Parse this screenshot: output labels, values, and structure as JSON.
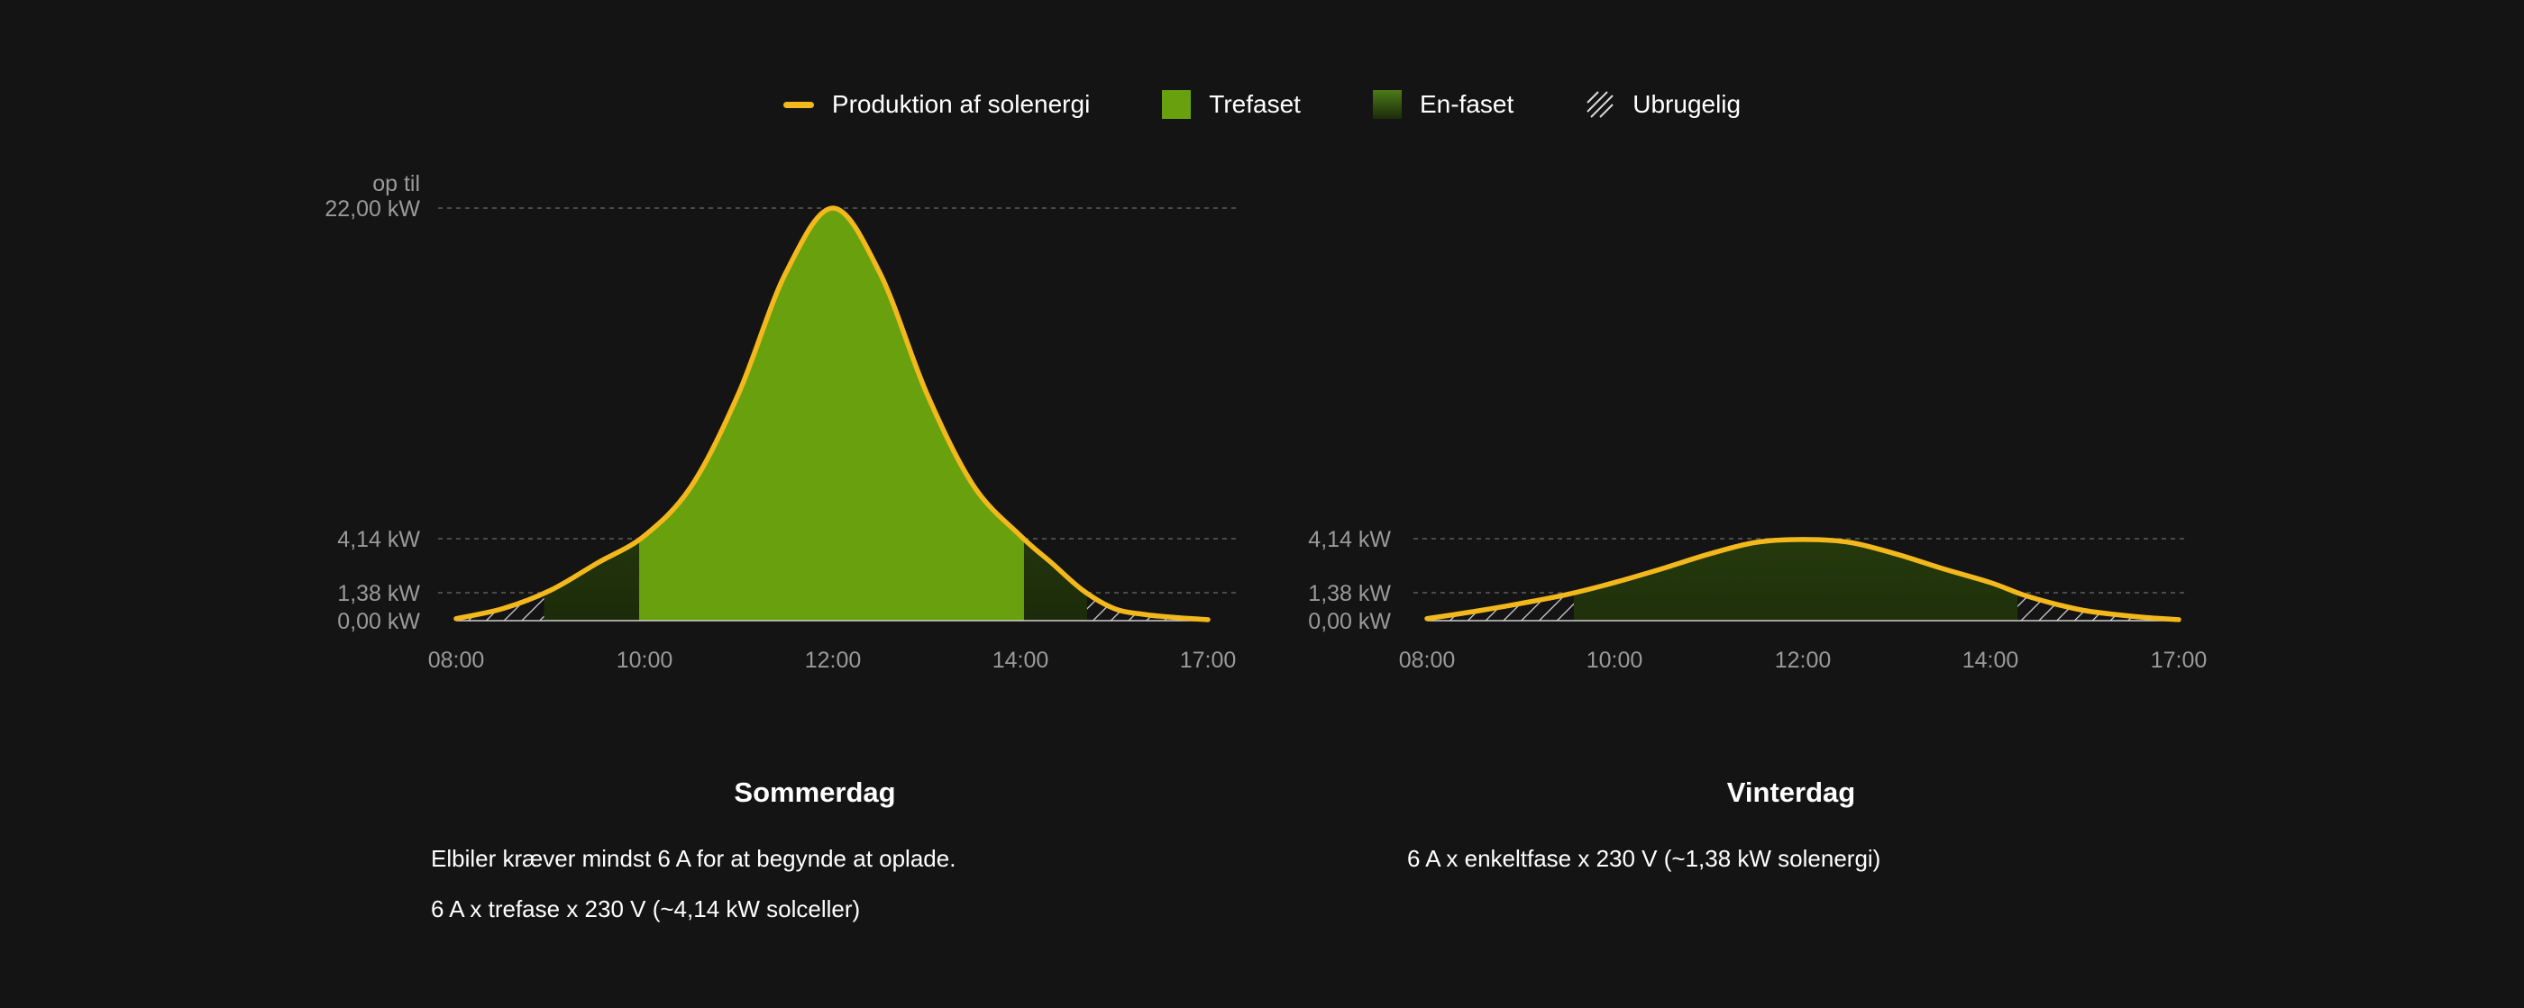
{
  "legend": {
    "production": "Produktion af solenergi",
    "three_phase": "Trefaset",
    "single_phase": "En-faset",
    "unusable": "Ubrugelig"
  },
  "colors": {
    "production_line": "#f2b81c",
    "three_phase": "#68a00e",
    "single_phase_top": "#4c7a18",
    "single_phase_bottom": "#1c2b0a",
    "background": "#141414"
  },
  "chart_data": [
    {
      "type": "area",
      "title": "Sommerdag",
      "x_ticks": [
        "08:00",
        "10:00",
        "12:00",
        "14:00",
        "17:00"
      ],
      "y_ticks": [
        "0,00 kW",
        "1,38 kW",
        "4,14 kW",
        "22,00 kW"
      ],
      "y_top_prefix": "op til",
      "thresholds_kw": {
        "single_phase": 1.38,
        "three_phase": 4.14
      },
      "series": [
        {
          "name": "Produktion af solenergi",
          "x": [
            "08:00",
            "08:30",
            "09:00",
            "09:30",
            "10:00",
            "10:30",
            "11:00",
            "11:30",
            "12:00",
            "12:30",
            "13:00",
            "13:30",
            "14:00",
            "14:30",
            "15:00",
            "15:30",
            "16:00",
            "16:30",
            "17:00"
          ],
          "values": [
            0.1,
            0.6,
            1.5,
            2.9,
            4.3,
            7.0,
            12.0,
            18.5,
            22.0,
            18.5,
            12.0,
            7.0,
            4.3,
            2.9,
            1.5,
            0.6,
            0.3,
            0.15,
            0.05
          ]
        }
      ],
      "descriptions": [
        "Elbiler kræver mindst 6 A for at begynde at oplade.",
        "6 A x trefase x 230 V (~4,14 kW solceller)"
      ]
    },
    {
      "type": "area",
      "title": "Vinterdag",
      "x_ticks": [
        "08:00",
        "10:00",
        "12:00",
        "14:00",
        "17:00"
      ],
      "y_ticks": [
        "0,00 kW",
        "1,38 kW",
        "4,14 kW"
      ],
      "thresholds_kw": {
        "single_phase": 1.38,
        "three_phase": 4.14
      },
      "series": [
        {
          "name": "Produktion af solenergi",
          "x": [
            "08:00",
            "08:30",
            "09:00",
            "09:30",
            "10:00",
            "10:30",
            "11:00",
            "11:30",
            "12:00",
            "12:30",
            "13:00",
            "13:30",
            "14:00",
            "14:30",
            "15:00",
            "15:30",
            "16:00",
            "16:30",
            "17:00"
          ],
          "values": [
            0.1,
            0.45,
            0.85,
            1.3,
            1.9,
            2.6,
            3.35,
            3.95,
            4.1,
            3.95,
            3.35,
            2.6,
            1.9,
            1.3,
            0.85,
            0.5,
            0.3,
            0.15,
            0.05
          ]
        }
      ],
      "descriptions": [
        "6 A x enkeltfase x 230 V (~1,38 kW solenergi)"
      ]
    }
  ]
}
